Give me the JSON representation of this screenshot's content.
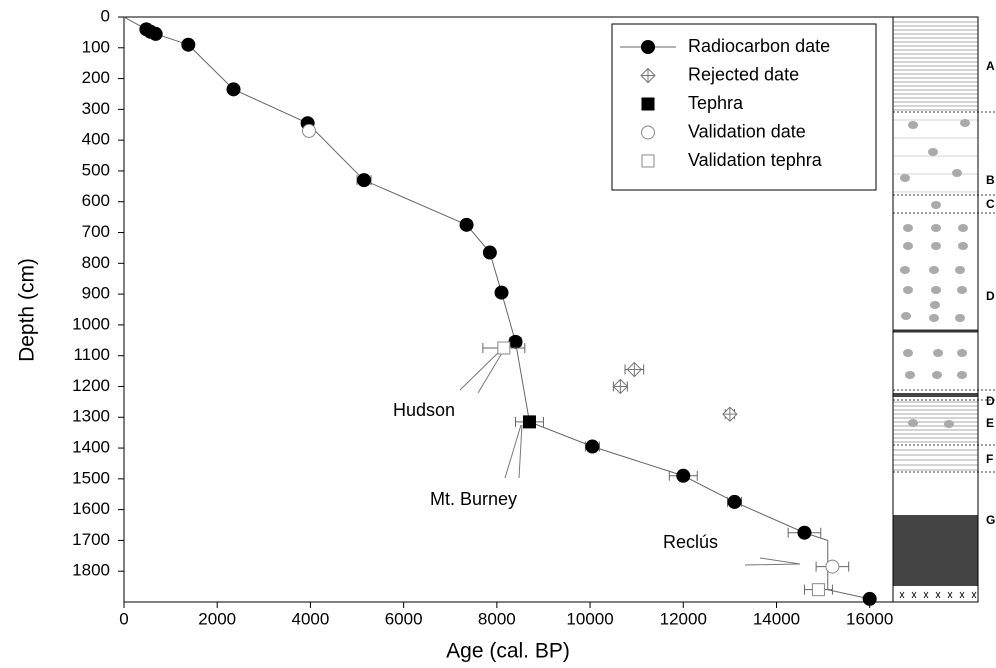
{
  "chart_data": {
    "type": "scatter",
    "x_label": "Age (cal. BP)",
    "y_label": "Depth (cm)",
    "xlim": [
      0,
      16500
    ],
    "ylim": [
      0,
      1900
    ],
    "y_inverted": true,
    "xticks": [
      0,
      2000,
      4000,
      6000,
      8000,
      10000,
      12000,
      14000,
      16000
    ],
    "yticks": [
      0,
      100,
      200,
      300,
      400,
      500,
      600,
      700,
      800,
      900,
      1000,
      1100,
      1200,
      1300,
      1400,
      1500,
      1600,
      1700,
      1800
    ],
    "legend": "upper right",
    "age_model": {
      "color": "#666666",
      "x": [
        0,
        480,
        570,
        680,
        1380,
        2350,
        3940,
        5150,
        7350,
        7850,
        8100,
        8400,
        8700,
        10050,
        12000,
        13100,
        14600,
        15100,
        15100,
        16000
      ],
      "y": [
        0,
        40,
        48,
        55,
        90,
        235,
        345,
        530,
        675,
        765,
        895,
        1055,
        1315,
        1395,
        1490,
        1575,
        1675,
        1700,
        1860,
        1890
      ]
    },
    "series": [
      {
        "name": "Radiocarbon date",
        "marker": "circle",
        "filled": true,
        "color": "#000000",
        "legend_line": true,
        "x": [
          480,
          570,
          680,
          1380,
          2350,
          3940,
          5150,
          7350,
          7850,
          8100,
          8400,
          10050,
          12000,
          13100,
          14600,
          16000
        ],
        "values": [
          40,
          48,
          55,
          90,
          235,
          345,
          530,
          675,
          765,
          895,
          1055,
          1395,
          1490,
          1575,
          1675,
          1890
        ],
        "x_errors": [
          0,
          0,
          0,
          100,
          50,
          50,
          150,
          100,
          80,
          80,
          120,
          150,
          300,
          150,
          350,
          0
        ]
      },
      {
        "name": "Rejected date",
        "marker": "diamond-cross",
        "filled": false,
        "color": "#777777",
        "x": [
          10650,
          10950,
          13000
        ],
        "values": [
          1200,
          1145,
          1290
        ],
        "x_errors": [
          150,
          200,
          100
        ]
      },
      {
        "name": "Tephra",
        "marker": "square",
        "filled": true,
        "color": "#000000",
        "x": [
          8700
        ],
        "values": [
          1315
        ],
        "x_errors": [
          300
        ]
      },
      {
        "name": "Validation date",
        "marker": "circle",
        "filled": false,
        "color": "#888888",
        "x": [
          3970,
          15200
        ],
        "values": [
          370,
          1785
        ],
        "x_errors": [
          0,
          350
        ]
      },
      {
        "name": "Validation tephra",
        "marker": "square",
        "filled": false,
        "color": "#888888",
        "x": [
          8150,
          14900
        ],
        "values": [
          1075,
          1860
        ],
        "x_errors": [
          450,
          300
        ]
      }
    ],
    "annotations": [
      "Hudson",
      "Mt. Burney",
      "Reclús"
    ],
    "lithology_units": [
      "A",
      "B",
      "C",
      "D",
      "D",
      "E",
      "F",
      "G"
    ]
  }
}
